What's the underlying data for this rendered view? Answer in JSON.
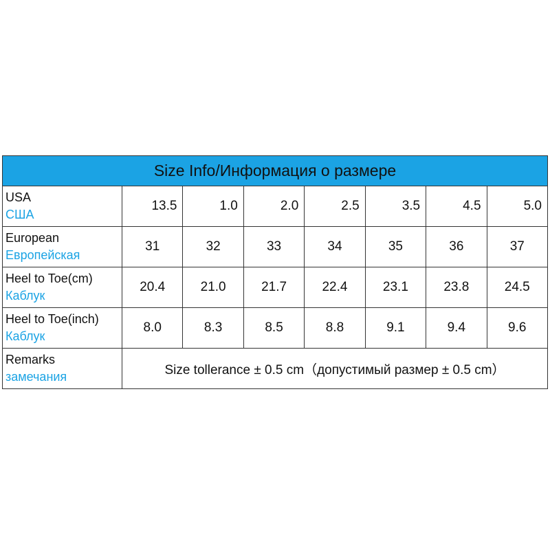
{
  "header": {
    "title": "Size Info/Информация о размере"
  },
  "table": {
    "rows": [
      {
        "label_en": "USA",
        "label_ru": "США",
        "cells": [
          "13.5",
          "1.0",
          "2.0",
          "2.5",
          "3.5",
          "4.5",
          "5.0"
        ]
      },
      {
        "label_en": "European",
        "label_ru": "Европейская",
        "cells": [
          "31",
          "32",
          "33",
          "34",
          "35",
          "36",
          "37"
        ]
      },
      {
        "label_en": "Heel to Toe(cm)",
        "label_ru": "Каблук",
        "cells": [
          "20.4",
          "21.0",
          "21.7",
          "22.4",
          "23.1",
          "23.8",
          "24.5"
        ]
      },
      {
        "label_en": "Heel to Toe(inch)",
        "label_ru": "Каблук",
        "cells": [
          "8.0",
          "8.3",
          "8.5",
          "8.8",
          "9.1",
          "9.4",
          "9.6"
        ]
      }
    ],
    "remarks": {
      "label_en": "Remarks",
      "label_ru": "замечания",
      "text": "Size tollerance ± 0.5 cm（допустимый размер ± 0.5 cm）"
    }
  }
}
